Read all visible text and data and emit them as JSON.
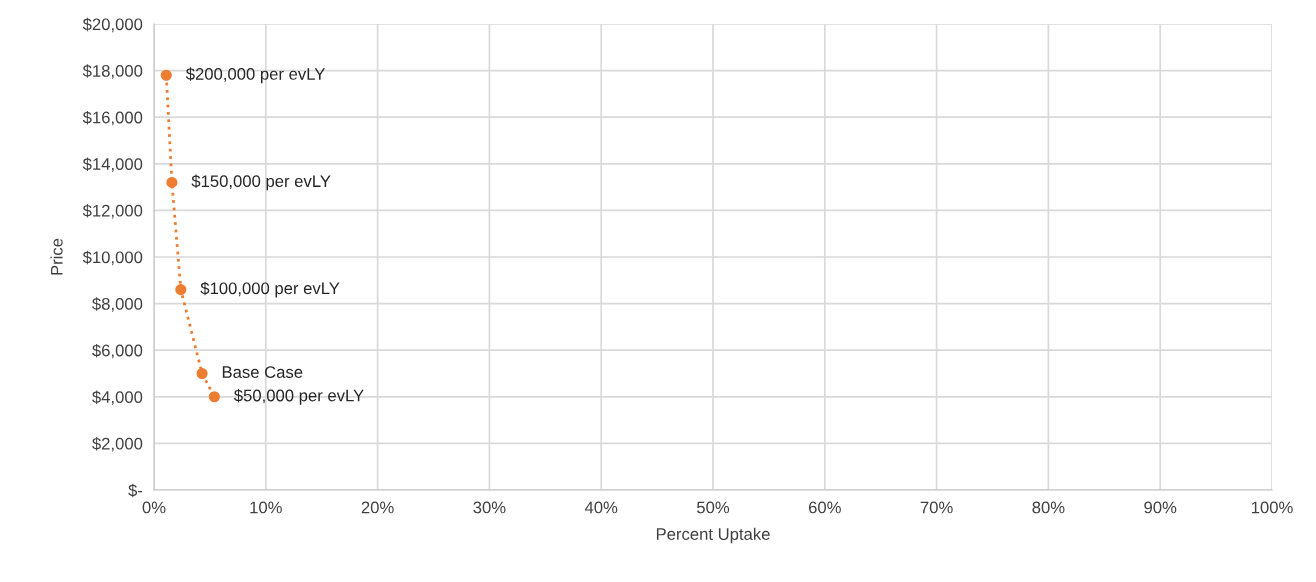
{
  "chart_data": {
    "type": "line",
    "xlabel": "Percent Uptake",
    "ylabel": "Price",
    "x": [
      1.1,
      1.6,
      2.4,
      4.3,
      5.4
    ],
    "series": [
      {
        "color": "#ed7d31",
        "values": [
          17800,
          13200,
          8600,
          5000,
          4000
        ]
      }
    ],
    "marker": "circle",
    "line_style": "dotted",
    "grid": true,
    "xlim": [
      0,
      100
    ],
    "ylim": [
      0,
      20000
    ],
    "xticks": [
      {
        "value": 0,
        "label": "0%"
      },
      {
        "value": 10,
        "label": "10%"
      },
      {
        "value": 20,
        "label": "20%"
      },
      {
        "value": 30,
        "label": "30%"
      },
      {
        "value": 40,
        "label": "40%"
      },
      {
        "value": 50,
        "label": "50%"
      },
      {
        "value": 60,
        "label": "60%"
      },
      {
        "value": 70,
        "label": "70%"
      },
      {
        "value": 80,
        "label": "80%"
      },
      {
        "value": 90,
        "label": "90%"
      },
      {
        "value": 100,
        "label": "100%"
      }
    ],
    "yticks": [
      {
        "value": 0,
        "label": "$-"
      },
      {
        "value": 2000,
        "label": "$2,000"
      },
      {
        "value": 4000,
        "label": "$4,000"
      },
      {
        "value": 6000,
        "label": "$6,000"
      },
      {
        "value": 8000,
        "label": "$8,000"
      },
      {
        "value": 10000,
        "label": "$10,000"
      },
      {
        "value": 12000,
        "label": "$12,000"
      },
      {
        "value": 14000,
        "label": "$14,000"
      },
      {
        "value": 16000,
        "label": "$16,000"
      },
      {
        "value": 18000,
        "label": "$18,000"
      },
      {
        "value": 20000,
        "label": "$20,000"
      }
    ],
    "annotations": [
      {
        "text": "$200,000 per evLY",
        "x": 1.1,
        "y": 17800
      },
      {
        "text": "$150,000 per evLY",
        "x": 1.6,
        "y": 13200
      },
      {
        "text": "$100,000 per evLY",
        "x": 2.4,
        "y": 8600
      },
      {
        "text": "Base Case",
        "x": 4.3,
        "y": 5000
      },
      {
        "text": "$50,000 per evLY",
        "x": 5.4,
        "y": 4000
      }
    ]
  }
}
